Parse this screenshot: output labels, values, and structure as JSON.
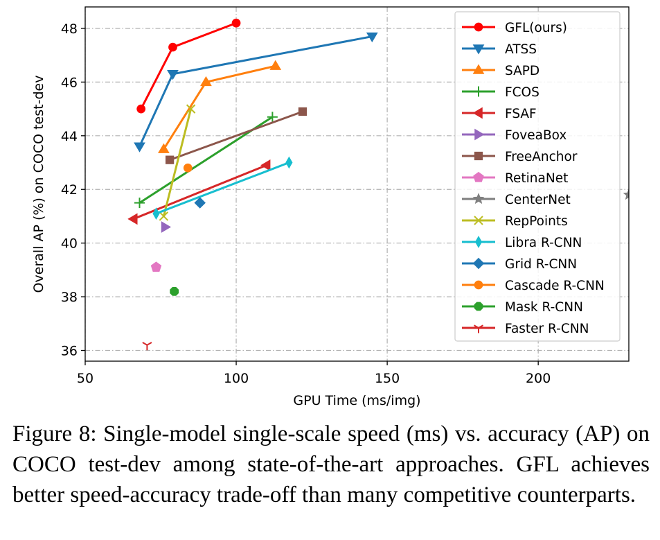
{
  "chart_data": {
    "type": "line",
    "xlabel": "GPU Time (ms/img)",
    "ylabel": "Overall AP (%) on COCO test-dev",
    "xlim": [
      50,
      230
    ],
    "ylim": [
      35.6,
      48.8
    ],
    "xticks": [
      50,
      100,
      150,
      200
    ],
    "yticks": [
      36,
      38,
      40,
      42,
      44,
      46,
      48
    ],
    "grid": true,
    "legend_position": "right",
    "series": [
      {
        "name": "GFL(ours)",
        "color": "#ff0000",
        "marker": "circle",
        "points": [
          [
            68.5,
            45.0
          ],
          [
            79,
            47.3
          ],
          [
            100,
            48.2
          ]
        ]
      },
      {
        "name": "ATSS",
        "color": "#1f77b4",
        "marker": "triangle-down",
        "points": [
          [
            68,
            43.6
          ],
          [
            79,
            46.3
          ],
          [
            145,
            47.7
          ]
        ]
      },
      {
        "name": "SAPD",
        "color": "#ff7f0e",
        "marker": "triangle-up",
        "points": [
          [
            76,
            43.5
          ],
          [
            90,
            46.0
          ],
          [
            113,
            46.6
          ]
        ]
      },
      {
        "name": "FCOS",
        "color": "#2ca02c",
        "marker": "plus",
        "points": [
          [
            68,
            41.5
          ],
          [
            112,
            44.7
          ]
        ]
      },
      {
        "name": "FSAF",
        "color": "#d62728",
        "marker": "triangle-left",
        "points": [
          [
            66,
            40.9
          ],
          [
            110,
            42.9
          ]
        ]
      },
      {
        "name": "FoveaBox",
        "color": "#9467bd",
        "marker": "triangle-right",
        "points": [
          [
            76.5,
            40.6
          ]
        ]
      },
      {
        "name": "FreeAnchor",
        "color": "#8c564b",
        "marker": "square",
        "points": [
          [
            78,
            43.1
          ],
          [
            122,
            44.9
          ]
        ]
      },
      {
        "name": "RetinaNet",
        "color": "#e377c2",
        "marker": "pentagon",
        "points": [
          [
            73.5,
            39.1
          ]
        ]
      },
      {
        "name": "CenterNet",
        "color": "#7f7f7f",
        "marker": "star",
        "points": [
          [
            230,
            41.8
          ]
        ]
      },
      {
        "name": "RepPoints",
        "color": "#bcbd22",
        "marker": "x",
        "points": [
          [
            76,
            41.0
          ],
          [
            85,
            45.0
          ]
        ]
      },
      {
        "name": "Libra R-CNN",
        "color": "#17becf",
        "marker": "thin-diamond",
        "points": [
          [
            73.5,
            41.1
          ],
          [
            117.5,
            43.0
          ]
        ]
      },
      {
        "name": "Grid R-CNN",
        "color": "#1f77b4",
        "marker": "diamond",
        "points": [
          [
            88,
            41.5
          ]
        ]
      },
      {
        "name": "Cascade R-CNN",
        "color": "#ff7f0e",
        "marker": "circle",
        "points": [
          [
            84,
            42.8
          ]
        ]
      },
      {
        "name": "Mask R-CNN",
        "color": "#2ca02c",
        "marker": "octagon",
        "points": [
          [
            79.5,
            38.2
          ]
        ]
      },
      {
        "name": "Faster R-CNN",
        "color": "#d62728",
        "marker": "tri-down",
        "points": [
          [
            70.5,
            36.2
          ]
        ]
      }
    ]
  },
  "caption": "Figure 8: Single-model single-scale speed (ms) vs. accuracy (AP) on COCO test-dev among state-of-the-art approaches. GFL achieves better speed-accuracy trade-off than many competitive counterparts."
}
